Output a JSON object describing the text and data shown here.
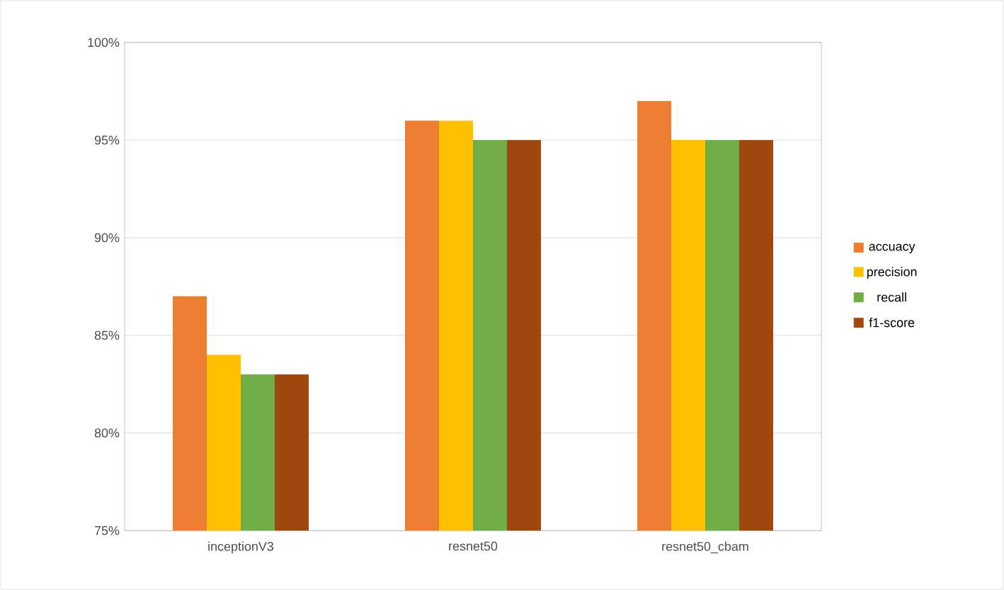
{
  "chart_data": {
    "type": "bar",
    "categories": [
      "inceptionV3",
      "resnet50",
      "resnet50_cbam"
    ],
    "series": [
      {
        "name": "accuacy",
        "color": "#ed7d31",
        "values": [
          87,
          96,
          97
        ]
      },
      {
        "name": "precision",
        "color": "#ffc000",
        "values": [
          84,
          96,
          95
        ]
      },
      {
        "name": "recall",
        "color": "#70ad47",
        "values": [
          83,
          95,
          95
        ]
      },
      {
        "name": "f1-score",
        "color": "#9e480e",
        "values": [
          83,
          95,
          95
        ]
      }
    ],
    "ylim": [
      75,
      100
    ],
    "yticks": [
      {
        "value": 75,
        "label": "75%"
      },
      {
        "value": 80,
        "label": "80%"
      },
      {
        "value": 85,
        "label": "85%"
      },
      {
        "value": 90,
        "label": "90%"
      },
      {
        "value": 95,
        "label": "95%"
      },
      {
        "value": 100,
        "label": "100%"
      }
    ],
    "grid": "y",
    "legend": "right"
  }
}
